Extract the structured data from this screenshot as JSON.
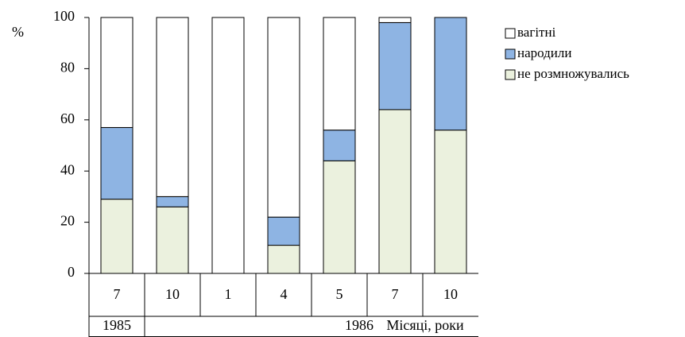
{
  "chart_data": {
    "type": "stacked_bar",
    "y_label": "%",
    "x_label": "Місяці, роки",
    "categories": [
      "7",
      "10",
      "1",
      "4",
      "5",
      "7",
      "10"
    ],
    "groups": [
      "1985",
      "1986",
      null,
      null,
      null,
      null,
      null
    ],
    "series": [
      {
        "name": "не розмножувались",
        "color": "#ebf1de",
        "values": [
          29,
          26,
          0,
          11,
          44,
          64,
          56
        ]
      },
      {
        "name": "народили",
        "color": "#8eb4e3",
        "values": [
          28,
          4,
          0,
          11,
          12,
          34,
          44
        ]
      },
      {
        "name": "вагітні",
        "color": "#ffffff",
        "values": [
          43,
          70,
          100,
          78,
          44,
          2,
          0
        ]
      }
    ],
    "ylim": [
      0,
      100
    ],
    "yticks": [
      0,
      20,
      40,
      60,
      80,
      100
    ],
    "legend": "right"
  }
}
